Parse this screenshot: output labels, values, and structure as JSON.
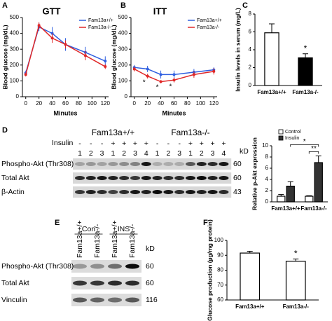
{
  "panel_labels": [
    "A",
    "B",
    "C",
    "D",
    "E",
    "F"
  ],
  "chart_data": [
    {
      "type": "line",
      "title": "GTT",
      "x_label": "Minutes",
      "y_label": "Blood glucose (mg/dL)",
      "x": [
        0,
        20,
        40,
        60,
        90,
        120
      ],
      "xlim": [
        -5,
        125
      ],
      "xticks": [
        0,
        20,
        40,
        60,
        80,
        100,
        120
      ],
      "ylim": [
        0,
        500
      ],
      "yticks": [
        0,
        100,
        200,
        300,
        400,
        500
      ],
      "legend": "top-right",
      "series": [
        {
          "name": "Fam13a+/+",
          "color": "#2f5fe0",
          "values": [
            150,
            440,
            400,
            330,
            280,
            225
          ],
          "errors": [
            15,
            25,
            40,
            40,
            35,
            30
          ]
        },
        {
          "name": "Fam13a-/-",
          "color": "#e02828",
          "values": [
            140,
            450,
            370,
            330,
            260,
            190
          ],
          "errors": [
            12,
            20,
            30,
            25,
            30,
            15
          ]
        }
      ]
    },
    {
      "type": "line",
      "title": "ITT",
      "x_label": "Minutes",
      "y_label": "Blood glucose (mg/dL)",
      "x": [
        0,
        20,
        40,
        60,
        90,
        120
      ],
      "xlim": [
        -5,
        125
      ],
      "xticks": [
        0,
        20,
        40,
        60,
        80,
        100,
        120
      ],
      "ylim": [
        0,
        500
      ],
      "yticks": [
        0,
        100,
        200,
        300,
        400,
        500
      ],
      "legend": "top-right",
      "annotations": [
        "*",
        "*",
        "*"
      ],
      "series": [
        {
          "name": "Fam13a+/+",
          "color": "#2f5fe0",
          "values": [
            185,
            175,
            140,
            140,
            155,
            170
          ],
          "errors": [
            15,
            20,
            25,
            25,
            20,
            15
          ]
        },
        {
          "name": "Fam13a-/-",
          "color": "#e02828",
          "values": [
            175,
            130,
            95,
            105,
            140,
            160
          ],
          "errors": [
            15,
            15,
            10,
            15,
            20,
            20
          ]
        }
      ]
    },
    {
      "type": "bar",
      "y_label": "Insulin levels in serum (mg/L)",
      "categories": [
        "Fam13a+/+",
        "Fam13a-/-"
      ],
      "values": [
        5.9,
        3.1
      ],
      "errors": [
        1.0,
        0.45
      ],
      "colors": [
        "#ffffff",
        "#000000"
      ],
      "ylim": [
        0,
        8
      ],
      "yticks": [
        0,
        2,
        4,
        6,
        8
      ],
      "annotations": [
        "*"
      ]
    },
    {
      "type": "bar",
      "y_label": "Relative p-Akt expression",
      "categories": [
        "Fam13a+/+",
        "Fam13a-/-"
      ],
      "ylim": [
        0,
        10
      ],
      "yticks": [
        0,
        2,
        4,
        6,
        8,
        10
      ],
      "legend": "top-left",
      "annotations": [
        "*",
        "**"
      ],
      "series": [
        {
          "name": "Control",
          "color": "#ffffff",
          "values": [
            1.0,
            1.0
          ],
          "errors": [
            0.3,
            0.1
          ]
        },
        {
          "name": "Insulin",
          "color": "#333333",
          "values": [
            2.8,
            7.0
          ],
          "errors": [
            0.8,
            1.2
          ]
        }
      ]
    },
    {
      "type": "bar",
      "y_label": "Glucose production (µg/mg protein)",
      "categories": [
        "Fam13a+/+",
        "Fam13a-/-"
      ],
      "values": [
        91.5,
        86
      ],
      "errors": [
        1.2,
        1.5
      ],
      "colors": [
        "#ffffff",
        "#ffffff"
      ],
      "ylim": [
        60,
        100
      ],
      "yticks": [
        60,
        70,
        80,
        90,
        100
      ],
      "annotations": [
        "*"
      ]
    }
  ],
  "blot_d": {
    "group_labels": [
      "Fam13a+/+",
      "Fam13a-/-"
    ],
    "treatment_label": "Insulin",
    "treatment": [
      "-",
      "-",
      "-",
      "+",
      "+",
      "+",
      "+",
      "-",
      "-",
      "-",
      "+",
      "+",
      "+",
      "+"
    ],
    "lanes": [
      1,
      2,
      3,
      1,
      2,
      3,
      4,
      1,
      2,
      3,
      1,
      2,
      3,
      4
    ],
    "kd_header": "kD",
    "rows": [
      {
        "label": "Phospho-Akt (Thr308)",
        "kd": 60
      },
      {
        "label": "Total Akt",
        "kd": 60
      },
      {
        "label": "β-Actin",
        "kd": 43
      }
    ]
  },
  "blot_e": {
    "group_labels": [
      "Con",
      "INS"
    ],
    "lanes": [
      "Fam13a+/+",
      "Fam13a-/-",
      "Fam13a+/+",
      "Fam13a-/-"
    ],
    "kd_header": "kD",
    "rows": [
      {
        "label": "Phospho-Akt (Thr308)",
        "kd": 60
      },
      {
        "label": "Total Akt",
        "kd": 60
      },
      {
        "label": "Vinculin",
        "kd": 116
      }
    ]
  }
}
